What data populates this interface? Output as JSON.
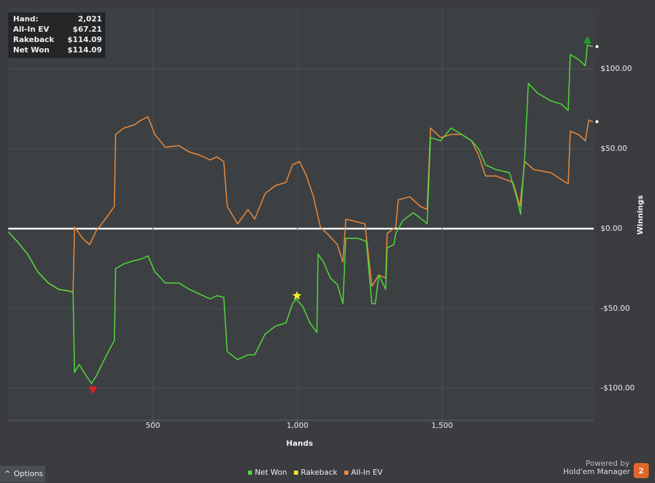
{
  "chart_data": {
    "type": "line",
    "x_label": "Hands",
    "y_label": "Winnings",
    "xlim": [
      0,
      2024
    ],
    "ylim": [
      -120,
      138
    ],
    "xticks": [
      500,
      {
        "value": 1000,
        "label": "1,000"
      },
      {
        "value": 1500,
        "label": "1,500"
      }
    ],
    "yticks": [
      {
        "value": -100,
        "label": "-$100.00"
      },
      {
        "value": -50,
        "label": "-$50.00"
      },
      {
        "value": 0,
        "label": "$0.00"
      },
      {
        "value": 50,
        "label": "$50.00"
      },
      {
        "value": 100,
        "label": "$100.00"
      }
    ],
    "grid": true,
    "series": [
      {
        "name": "Net Won",
        "color": "#52d43c",
        "x": [
          0,
          31,
          67,
          102,
          138,
          174,
          210,
          224,
          229,
          245,
          269,
          288,
          305,
          329,
          352,
          367,
          371,
          400,
          436,
          460,
          483,
          507,
          543,
          567,
          590,
          626,
          662,
          698,
          721,
          745,
          757,
          793,
          829,
          852,
          888,
          924,
          960,
          983,
          995,
          1019,
          1043,
          1067,
          1071,
          1090,
          1114,
          1138,
          1157,
          1167,
          1190,
          1209,
          1238,
          1257,
          1269,
          1281,
          1305,
          1310,
          1333,
          1340,
          1364,
          1400,
          1436,
          1448,
          1460,
          1495,
          1531,
          1567,
          1602,
          1626,
          1650,
          1686,
          1733,
          1757,
          1771,
          1786,
          1798,
          1829,
          1876,
          1912,
          1936,
          1943,
          1971,
          1995,
          2002,
          2021
        ],
        "values": [
          -2,
          -8,
          -16,
          -27,
          -34,
          -38,
          -39,
          -40,
          -90,
          -85,
          -92,
          -97,
          -92,
          -83,
          -75,
          -70,
          -25,
          -22,
          -20,
          -19,
          -17,
          -27,
          -34,
          -34,
          -34,
          -38,
          -41,
          -44,
          -42,
          -43,
          -77,
          -82,
          -79,
          -79,
          -66,
          -61,
          -59,
          -47,
          -44,
          -49,
          -59,
          -65,
          -16,
          -21,
          -31,
          -35,
          -47,
          -6,
          -6,
          -6,
          -8,
          -47,
          -47,
          -29,
          -38,
          -12,
          -10,
          -3,
          5,
          10,
          5,
          3,
          57,
          55,
          63,
          59,
          55,
          50,
          40,
          37,
          35,
          20,
          9,
          46,
          91,
          85,
          80,
          78,
          74,
          109,
          106,
          102,
          115,
          114
        ]
      },
      {
        "name": "Rakeback",
        "color": "#f2e531"
      },
      {
        "name": "All-In EV",
        "color": "#e8893a",
        "x": [
          0,
          31,
          67,
          102,
          138,
          174,
          210,
          224,
          229,
          257,
          281,
          305,
          340,
          367,
          371,
          400,
          436,
          460,
          483,
          507,
          543,
          590,
          626,
          662,
          698,
          721,
          745,
          757,
          793,
          829,
          852,
          888,
          924,
          960,
          983,
          1007,
          1031,
          1055,
          1079,
          1102,
          1138,
          1157,
          1167,
          1190,
          1233,
          1257,
          1281,
          1305,
          1310,
          1340,
          1348,
          1388,
          1424,
          1448,
          1460,
          1495,
          1531,
          1567,
          1602,
          1626,
          1650,
          1686,
          1745,
          1769,
          1786,
          1817,
          1876,
          1936,
          1943,
          1971,
          1995,
          2007,
          2021
        ],
        "values": [
          -2,
          -8,
          -16,
          -27,
          -34,
          -38,
          -39,
          -40,
          1,
          -6,
          -10,
          -1,
          7,
          14,
          59,
          63,
          65,
          68,
          70,
          59,
          51,
          52,
          48,
          46,
          43,
          45,
          42,
          14,
          3,
          12,
          6,
          22,
          27,
          29,
          40,
          42,
          33,
          20,
          1,
          -3,
          -10,
          -21,
          6,
          5,
          3,
          -36,
          -29,
          -31,
          -3,
          1,
          18,
          20,
          14,
          12,
          63,
          57,
          59,
          59,
          55,
          46,
          33,
          33,
          29,
          14,
          42,
          37,
          35,
          28,
          61,
          59,
          55,
          68,
          67
        ]
      }
    ],
    "markers": [
      {
        "x": 293,
        "y": -101,
        "shape": "triangle-down",
        "color": "#e0211c"
      },
      {
        "x": 998,
        "y": -42,
        "shape": "star",
        "color": "#f7ec2a"
      },
      {
        "x": 2002,
        "y": 118,
        "shape": "triangle-up",
        "color": "#1e9c2a"
      }
    ]
  },
  "info_box": {
    "rows": [
      {
        "label": "Hand:",
        "value": "2,021"
      },
      {
        "label": "All-In EV",
        "value": "$67.21"
      },
      {
        "label": "Rakeback",
        "value": "$114.09"
      },
      {
        "label": "Net Won",
        "value": "$114.09"
      }
    ]
  },
  "ui": {
    "options": "Options",
    "powered_by": "Powered by",
    "brand": "Hold'em Manager",
    "badge": "2"
  }
}
